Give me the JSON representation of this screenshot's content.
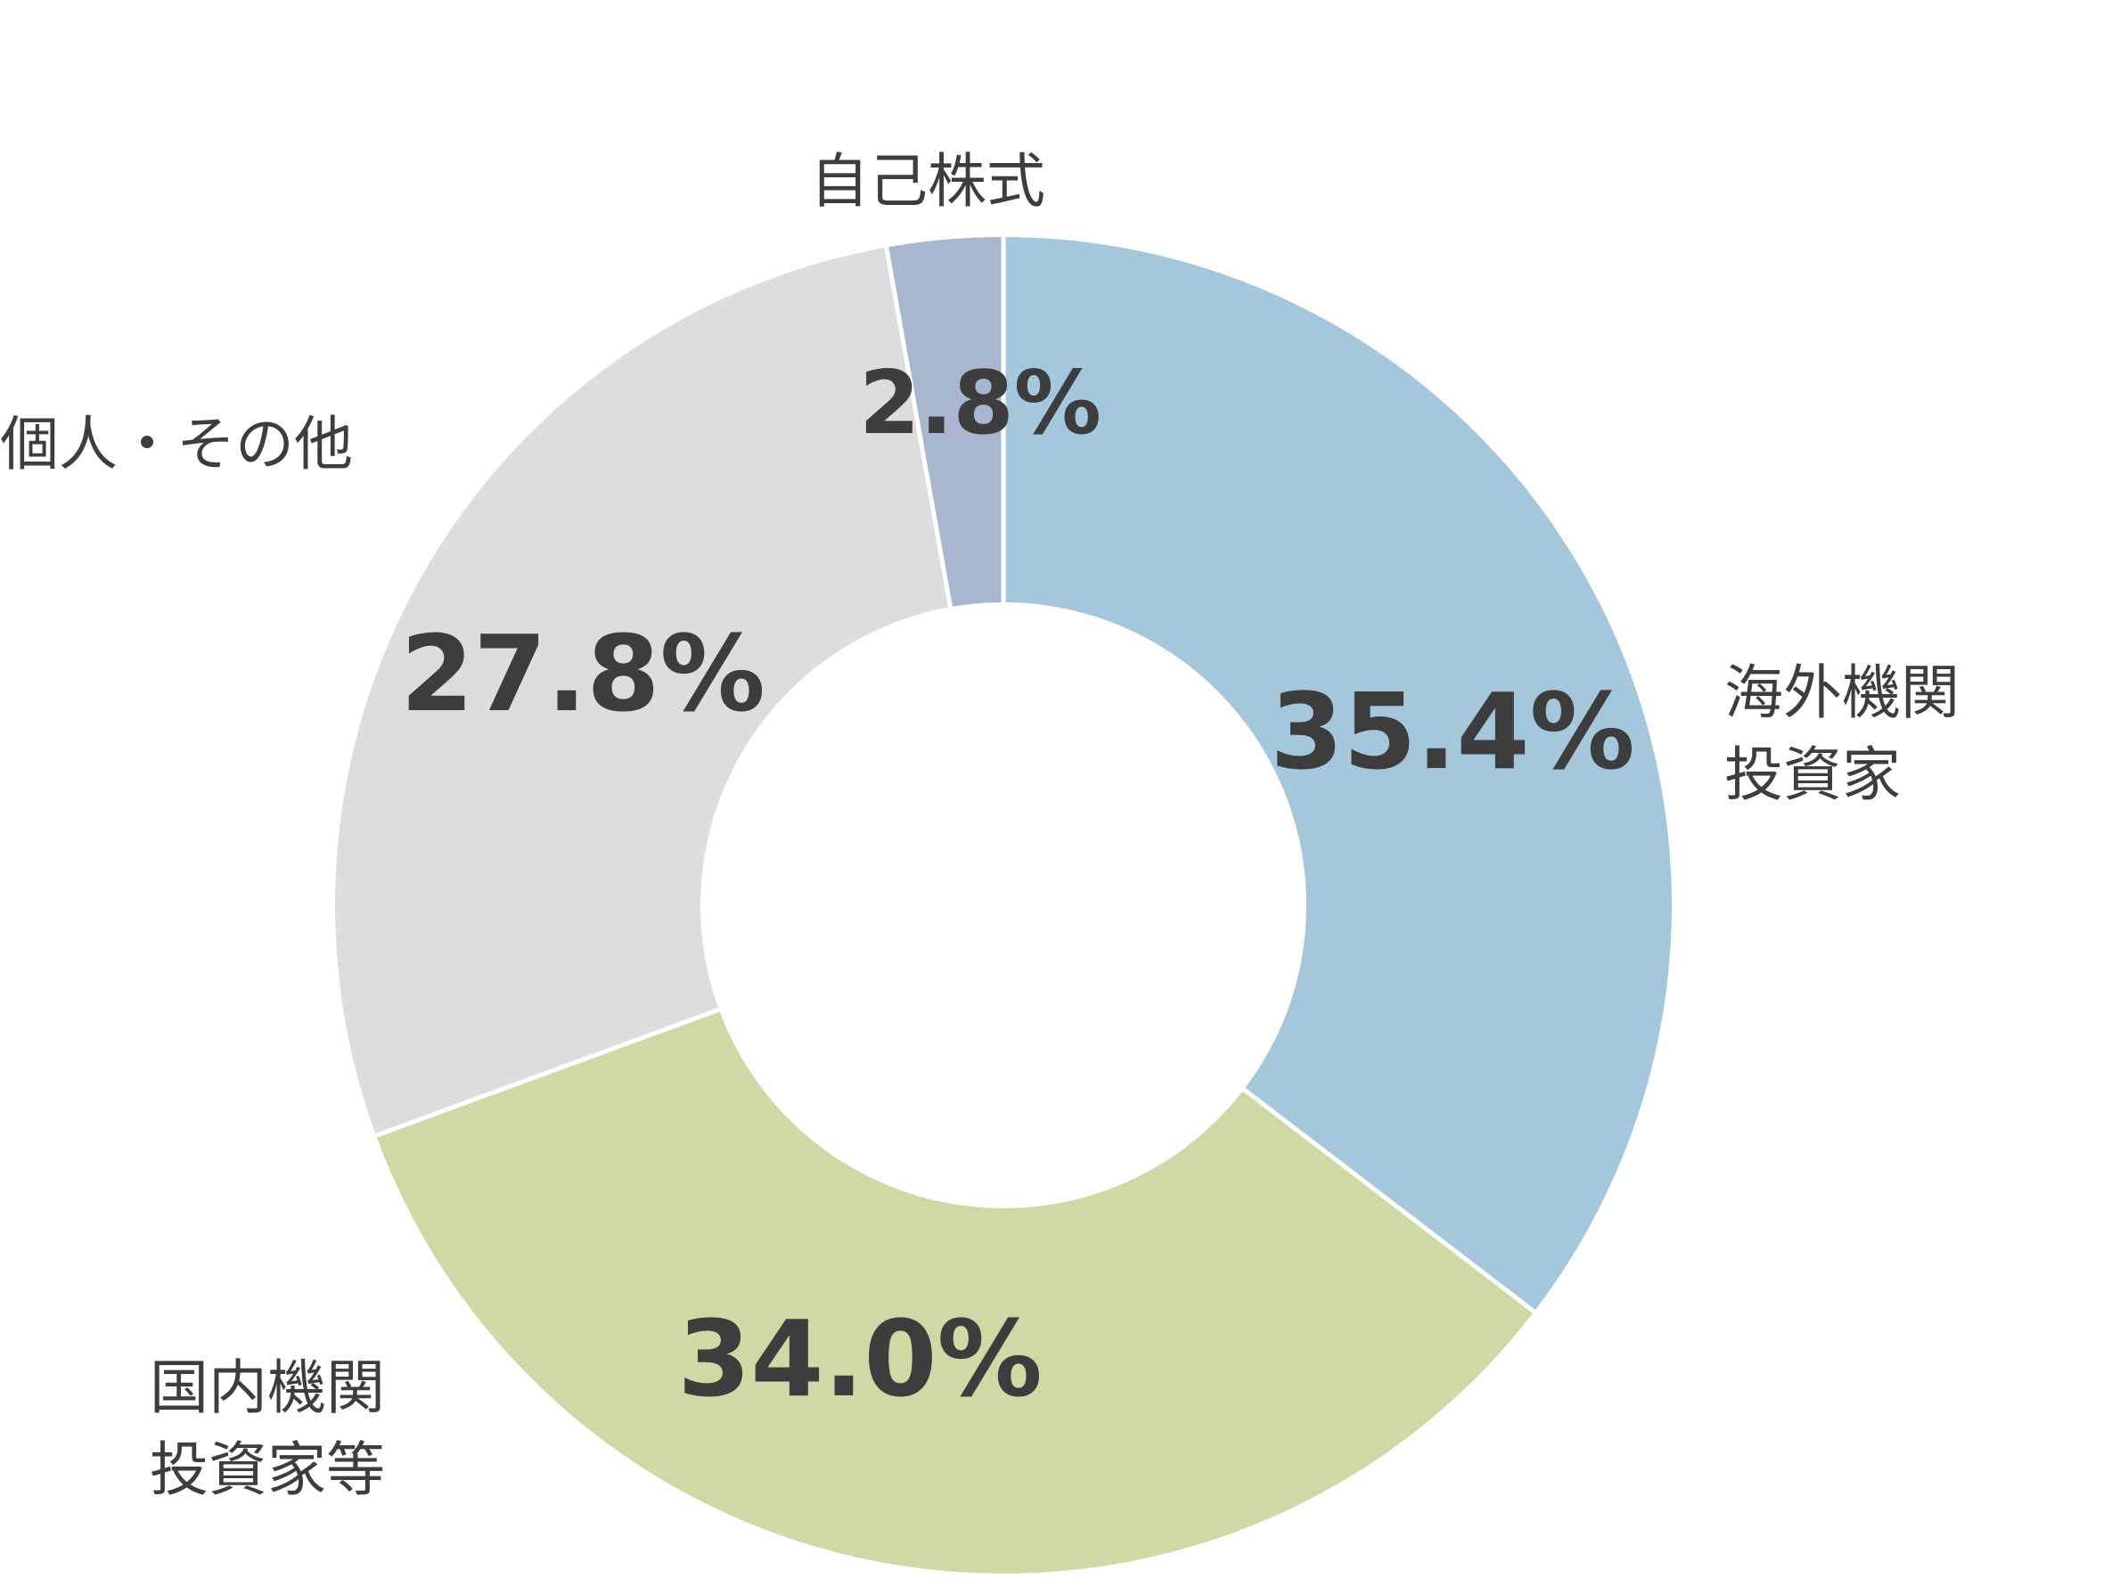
{
  "chart_data": {
    "type": "pie",
    "variant": "donut",
    "title": "",
    "start_angle_deg": 0,
    "direction": "clockwise",
    "slices": [
      {
        "label_lines": [
          "海外機関",
          "投資家"
        ],
        "value": 35.4,
        "value_text": "35.4%",
        "color": "#a5c7dc"
      },
      {
        "label_lines": [
          "国内機関",
          "投資家等"
        ],
        "value": 34.0,
        "value_text": "34.0%",
        "color": "#cfd9a5"
      },
      {
        "label_lines": [
          "個人・その他"
        ],
        "value": 27.8,
        "value_text": "27.8%",
        "color": "#dcdddd"
      },
      {
        "label_lines": [
          "自己株式"
        ],
        "value": 2.8,
        "value_text": "2.8%",
        "color": "#a9b6d0"
      }
    ],
    "separator_color": "#ffffff",
    "text_color": "#3d3d3d",
    "legend": "none"
  }
}
